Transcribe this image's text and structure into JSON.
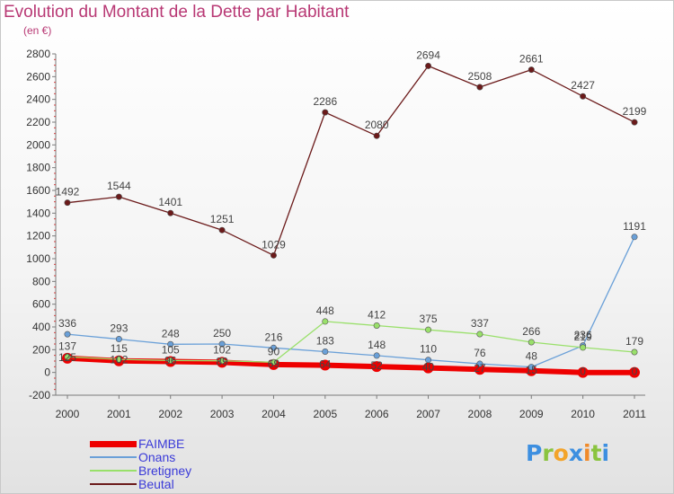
{
  "title": "Evolution du Montant de la Dette par Habitant",
  "subtitle": "(en €)",
  "brand": {
    "text": "Proxiti",
    "letters": [
      {
        "ch": "P",
        "color": "#3d8fe0"
      },
      {
        "ch": "r",
        "color": "#8ac43f"
      },
      {
        "ch": "o",
        "color": "#f3a42a"
      },
      {
        "ch": "x",
        "color": "#3d8fe0"
      },
      {
        "ch": "i",
        "color": "#f08a2a"
      },
      {
        "ch": "t",
        "color": "#8ac43f"
      },
      {
        "ch": "i",
        "color": "#3d8fe0"
      }
    ]
  },
  "chart_data": {
    "type": "line",
    "x": [
      2000,
      2001,
      2002,
      2003,
      2004,
      2005,
      2006,
      2007,
      2008,
      2009,
      2010,
      2011
    ],
    "x_tick_labels": [
      "2000",
      "2001",
      "2002",
      "2003",
      "2004",
      "2005",
      "2006",
      "2007",
      "2008",
      "2009",
      "2010",
      "2011"
    ],
    "ylim": [
      -200,
      2800
    ],
    "y_ticks": [
      -200,
      0,
      200,
      400,
      600,
      800,
      1000,
      1200,
      1400,
      1600,
      1800,
      2000,
      2200,
      2400,
      2600,
      2800
    ],
    "y_tick_labels": [
      "-200",
      "0",
      "200",
      "400",
      "600",
      "800",
      "1000",
      "1200",
      "1400",
      "1600",
      "1800",
      "2000",
      "2200",
      "2400",
      "2600",
      "2800"
    ],
    "grid": false,
    "legend_position": "bottom-left",
    "series": [
      {
        "name": "FAIMBE",
        "color": "#ee0000",
        "values": [
          125,
          102,
          96,
          89,
          69,
          64,
          52,
          40,
          27,
          15,
          0,
          0
        ],
        "labels": [
          "125",
          "102",
          "96",
          "89",
          "69",
          "64",
          "52",
          "40",
          "27",
          "15",
          "0",
          "0"
        ]
      },
      {
        "name": "Onans",
        "color": "#6aa0d8",
        "values": [
          336,
          293,
          248,
          250,
          216,
          183,
          148,
          110,
          76,
          48,
          236,
          1191
        ],
        "labels": [
          "336",
          "293",
          "248",
          "250",
          "216",
          "183",
          "148",
          "110",
          "76",
          "48",
          "236",
          "1191"
        ]
      },
      {
        "name": "Bretigney",
        "color": "#99e06a",
        "values": [
          137,
          115,
          105,
          102,
          90,
          448,
          412,
          375,
          337,
          266,
          219,
          179
        ],
        "labels": [
          "137",
          "115",
          "105",
          "102",
          "90",
          "448",
          "412",
          "375",
          "337",
          "266",
          "219",
          "179"
        ]
      },
      {
        "name": "Beutal",
        "color": "#6b1a1a",
        "values": [
          1492,
          1544,
          1401,
          1251,
          1029,
          2286,
          2080,
          2694,
          2508,
          2661,
          2427,
          2199
        ],
        "labels": [
          "1492",
          "1544",
          "1401",
          "1251",
          "1029",
          "2286",
          "2080",
          "2694",
          "2508",
          "2661",
          "2427",
          "2199"
        ]
      }
    ]
  }
}
